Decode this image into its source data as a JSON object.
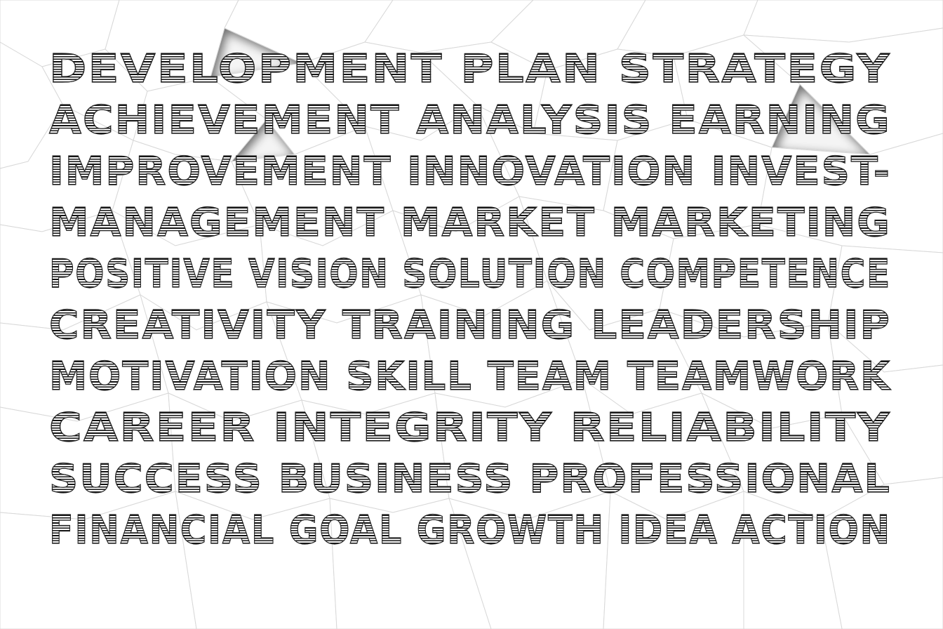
{
  "image": {
    "description_words": [
      "DEVELOPMENT PLAN STRATEGY",
      "ACHIEVEMENT ANALYSIS EARNING",
      "IMPROVEMENT INNOVATION INVEST-",
      "MANAGEMENT MARKET MARKETING",
      "POSITIVE VISION SOLUTION COMPETENCE",
      "CREATIVITY TRAINING LEADERSHIP",
      "MOTIVATION SKILL TEAM TEAMWORK",
      "CAREER INTEGRITY RELIABILITY",
      "SUCCESS BUSINESS PROFESSIONAL",
      "FINANCIAL GOAL GROWTH IDEA ACTION"
    ]
  }
}
